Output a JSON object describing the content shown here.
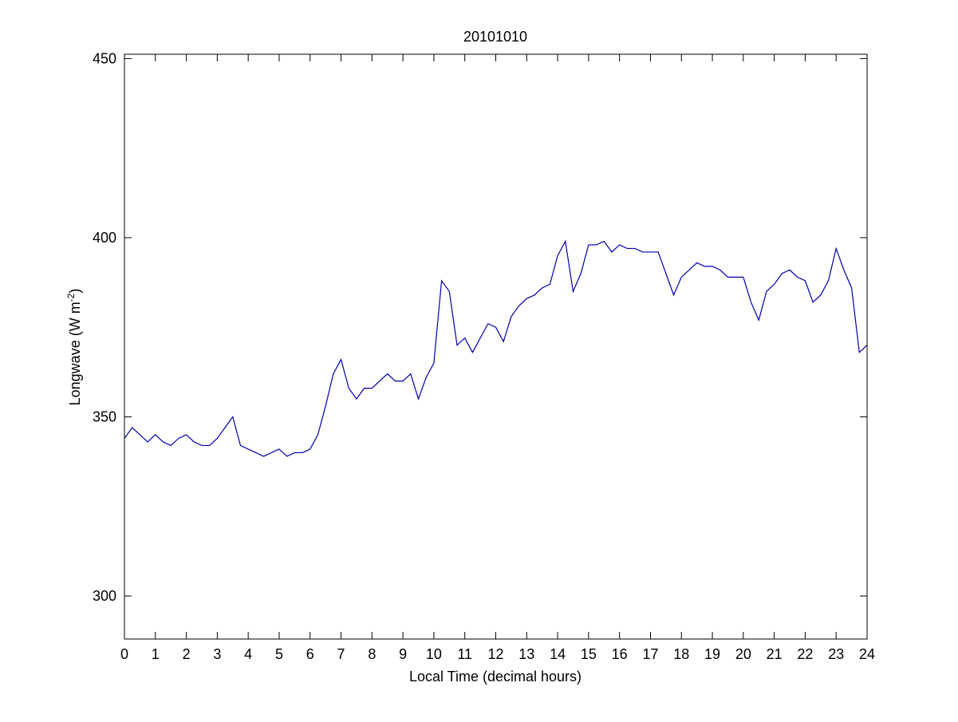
{
  "chart_data": {
    "type": "line",
    "title": "20101010",
    "xlabel": "Local Time (decimal hours)",
    "ylabel_parts": [
      "Longwave (W m",
      "-2",
      ")"
    ],
    "x": [
      0,
      0.25,
      0.5,
      0.75,
      1,
      1.25,
      1.5,
      1.75,
      2,
      2.25,
      2.5,
      2.75,
      3,
      3.25,
      3.5,
      3.75,
      4,
      4.25,
      4.5,
      4.75,
      5,
      5.25,
      5.5,
      5.75,
      6,
      6.25,
      6.5,
      6.75,
      7,
      7.25,
      7.5,
      7.75,
      8,
      8.25,
      8.5,
      8.75,
      9,
      9.25,
      9.5,
      9.75,
      10,
      10.25,
      10.5,
      10.75,
      11,
      11.25,
      11.5,
      11.75,
      12,
      12.25,
      12.5,
      12.75,
      13,
      13.25,
      13.5,
      13.75,
      14,
      14.25,
      14.5,
      14.75,
      15,
      15.25,
      15.5,
      15.75,
      16,
      16.25,
      16.5,
      16.75,
      17,
      17.25,
      17.5,
      17.75,
      18,
      18.25,
      18.5,
      18.75,
      19,
      19.25,
      19.5,
      19.75,
      20,
      20.25,
      20.5,
      20.75,
      21,
      21.25,
      21.5,
      21.75,
      22,
      22.25,
      22.5,
      22.75,
      23,
      23.25,
      23.5,
      23.75,
      24
    ],
    "series": [
      {
        "name": "Longwave",
        "color": "#0000aa",
        "values": [
          344,
          347,
          345,
          343,
          345,
          343,
          342,
          344,
          345,
          343,
          342,
          342,
          344,
          347,
          350,
          342,
          341,
          340,
          339,
          340,
          341,
          339,
          340,
          340,
          341,
          345,
          353,
          362,
          366,
          358,
          355,
          358,
          358,
          360,
          362,
          360,
          360,
          362,
          355,
          361,
          365,
          388,
          385,
          370,
          372,
          368,
          372,
          376,
          375,
          371,
          378,
          381,
          383,
          384,
          386,
          387,
          395,
          399,
          385,
          390,
          398,
          398,
          399,
          396,
          398,
          397,
          397,
          396,
          396,
          396,
          390,
          384,
          389,
          391,
          393,
          392,
          392,
          391,
          389,
          389,
          389,
          382,
          377,
          385,
          387,
          390,
          391,
          389,
          388,
          382,
          384,
          388,
          397,
          391,
          386,
          368,
          370
        ]
      }
    ],
    "xlim": [
      0,
      24
    ],
    "xticks": [
      0,
      1,
      2,
      3,
      4,
      5,
      6,
      7,
      8,
      9,
      10,
      11,
      12,
      13,
      14,
      15,
      16,
      17,
      18,
      19,
      20,
      21,
      22,
      23,
      24
    ],
    "ylim": [
      288,
      451.2
    ],
    "yticks": [
      300,
      350,
      400,
      450
    ],
    "grid": false
  }
}
